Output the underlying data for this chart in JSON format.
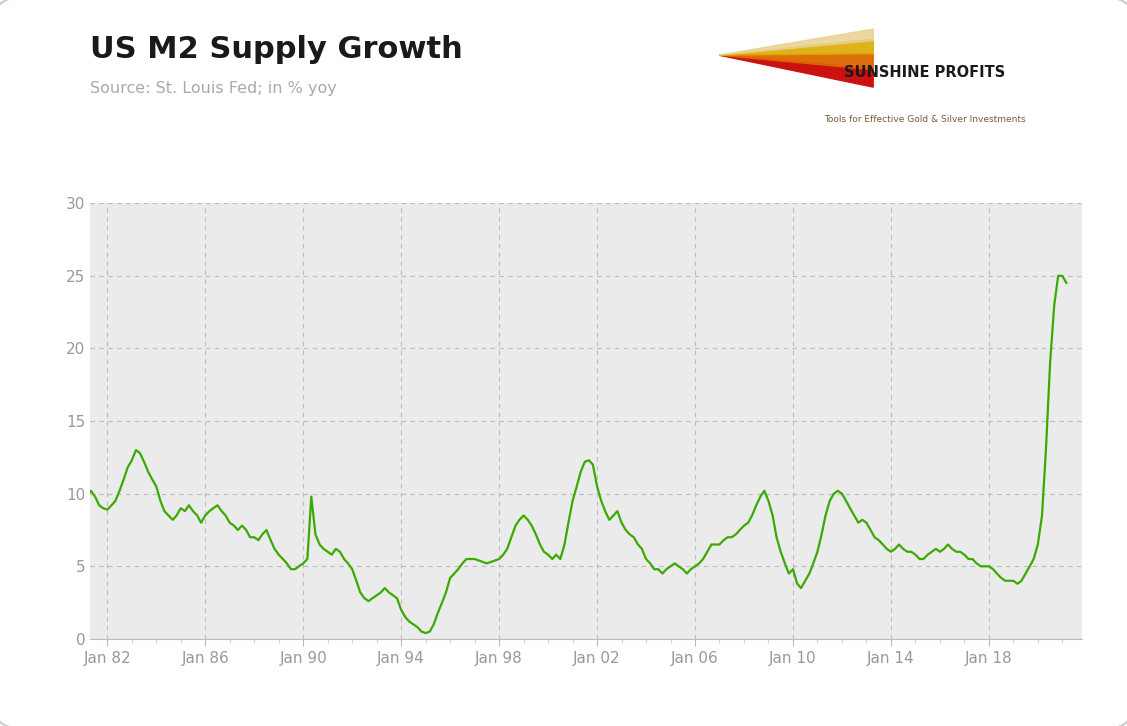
{
  "title": "US M2 Supply Growth",
  "subtitle": "Source: St. Louis Fed; in % yoy",
  "line_color": "#3aaa00",
  "plot_bg_color": "#ebebeb",
  "figure_bg_color": "#ffffff",
  "grid_color": "#bbbbbb",
  "tick_color": "#aaaaaa",
  "label_color": "#999999",
  "title_color": "#1a1a1a",
  "ylim": [
    0,
    30
  ],
  "yticks": [
    0,
    5,
    10,
    15,
    20,
    25,
    30
  ],
  "xlim_left": 1981.3,
  "xlim_right": 2021.8,
  "xtick_years": [
    1982,
    1986,
    1990,
    1994,
    1998,
    2002,
    2006,
    2010,
    2014,
    2018
  ],
  "xtick_labels": [
    "Jan 82",
    "Jan 86",
    "Jan 90",
    "Jan 94",
    "Jan 98",
    "Jan 02",
    "Jan 06",
    "Jan 10",
    "Jan 14",
    "Jan 18"
  ],
  "logo_text_main": "SUNSHINE PROFITS",
  "logo_text_sub": "Tools for Effective Gold & Silver Investments",
  "logo_ray_colors": [
    "#cc1111",
    "#dd6600",
    "#ddaa00",
    "#e8d090"
  ],
  "data": [
    [
      1981.0,
      9.5
    ],
    [
      1981.17,
      9.8
    ],
    [
      1981.33,
      10.2
    ],
    [
      1981.5,
      9.8
    ],
    [
      1981.67,
      9.2
    ],
    [
      1981.83,
      9.0
    ],
    [
      1982.0,
      8.9
    ],
    [
      1982.17,
      9.2
    ],
    [
      1982.33,
      9.5
    ],
    [
      1982.5,
      10.2
    ],
    [
      1982.67,
      11.0
    ],
    [
      1982.83,
      11.8
    ],
    [
      1983.0,
      12.3
    ],
    [
      1983.17,
      13.0
    ],
    [
      1983.33,
      12.8
    ],
    [
      1983.5,
      12.2
    ],
    [
      1983.67,
      11.5
    ],
    [
      1983.83,
      11.0
    ],
    [
      1984.0,
      10.5
    ],
    [
      1984.17,
      9.5
    ],
    [
      1984.33,
      8.8
    ],
    [
      1984.5,
      8.5
    ],
    [
      1984.67,
      8.2
    ],
    [
      1984.83,
      8.5
    ],
    [
      1985.0,
      9.0
    ],
    [
      1985.17,
      8.8
    ],
    [
      1985.33,
      9.2
    ],
    [
      1985.5,
      8.8
    ],
    [
      1985.67,
      8.5
    ],
    [
      1985.83,
      8.0
    ],
    [
      1986.0,
      8.5
    ],
    [
      1986.17,
      8.8
    ],
    [
      1986.33,
      9.0
    ],
    [
      1986.5,
      9.2
    ],
    [
      1986.67,
      8.8
    ],
    [
      1986.83,
      8.5
    ],
    [
      1987.0,
      8.0
    ],
    [
      1987.17,
      7.8
    ],
    [
      1987.33,
      7.5
    ],
    [
      1987.5,
      7.8
    ],
    [
      1987.67,
      7.5
    ],
    [
      1987.83,
      7.0
    ],
    [
      1988.0,
      7.0
    ],
    [
      1988.17,
      6.8
    ],
    [
      1988.33,
      7.2
    ],
    [
      1988.5,
      7.5
    ],
    [
      1988.67,
      6.8
    ],
    [
      1988.83,
      6.2
    ],
    [
      1989.0,
      5.8
    ],
    [
      1989.17,
      5.5
    ],
    [
      1989.33,
      5.2
    ],
    [
      1989.5,
      4.8
    ],
    [
      1989.67,
      4.8
    ],
    [
      1989.83,
      5.0
    ],
    [
      1990.0,
      5.2
    ],
    [
      1990.17,
      5.5
    ],
    [
      1990.33,
      9.8
    ],
    [
      1990.5,
      7.2
    ],
    [
      1990.67,
      6.5
    ],
    [
      1990.83,
      6.2
    ],
    [
      1991.0,
      6.0
    ],
    [
      1991.17,
      5.8
    ],
    [
      1991.33,
      6.2
    ],
    [
      1991.5,
      6.0
    ],
    [
      1991.67,
      5.5
    ],
    [
      1991.83,
      5.2
    ],
    [
      1992.0,
      4.8
    ],
    [
      1992.17,
      4.0
    ],
    [
      1992.33,
      3.2
    ],
    [
      1992.5,
      2.8
    ],
    [
      1992.67,
      2.6
    ],
    [
      1992.83,
      2.8
    ],
    [
      1993.0,
      3.0
    ],
    [
      1993.17,
      3.2
    ],
    [
      1993.33,
      3.5
    ],
    [
      1993.5,
      3.2
    ],
    [
      1993.67,
      3.0
    ],
    [
      1993.83,
      2.8
    ],
    [
      1994.0,
      2.0
    ],
    [
      1994.17,
      1.5
    ],
    [
      1994.33,
      1.2
    ],
    [
      1994.5,
      1.0
    ],
    [
      1994.67,
      0.8
    ],
    [
      1994.83,
      0.5
    ],
    [
      1995.0,
      0.4
    ],
    [
      1995.17,
      0.5
    ],
    [
      1995.33,
      1.0
    ],
    [
      1995.5,
      1.8
    ],
    [
      1995.67,
      2.5
    ],
    [
      1995.83,
      3.2
    ],
    [
      1996.0,
      4.2
    ],
    [
      1996.17,
      4.5
    ],
    [
      1996.33,
      4.8
    ],
    [
      1996.5,
      5.2
    ],
    [
      1996.67,
      5.5
    ],
    [
      1996.83,
      5.5
    ],
    [
      1997.0,
      5.5
    ],
    [
      1997.17,
      5.4
    ],
    [
      1997.33,
      5.3
    ],
    [
      1997.5,
      5.2
    ],
    [
      1997.67,
      5.3
    ],
    [
      1997.83,
      5.4
    ],
    [
      1998.0,
      5.5
    ],
    [
      1998.17,
      5.8
    ],
    [
      1998.33,
      6.2
    ],
    [
      1998.5,
      7.0
    ],
    [
      1998.67,
      7.8
    ],
    [
      1998.83,
      8.2
    ],
    [
      1999.0,
      8.5
    ],
    [
      1999.17,
      8.2
    ],
    [
      1999.33,
      7.8
    ],
    [
      1999.5,
      7.2
    ],
    [
      1999.67,
      6.5
    ],
    [
      1999.83,
      6.0
    ],
    [
      2000.0,
      5.8
    ],
    [
      2000.17,
      5.5
    ],
    [
      2000.33,
      5.8
    ],
    [
      2000.5,
      5.5
    ],
    [
      2000.67,
      6.5
    ],
    [
      2000.83,
      8.0
    ],
    [
      2001.0,
      9.5
    ],
    [
      2001.17,
      10.5
    ],
    [
      2001.33,
      11.5
    ],
    [
      2001.5,
      12.2
    ],
    [
      2001.67,
      12.3
    ],
    [
      2001.83,
      12.0
    ],
    [
      2002.0,
      10.5
    ],
    [
      2002.17,
      9.5
    ],
    [
      2002.33,
      8.8
    ],
    [
      2002.5,
      8.2
    ],
    [
      2002.67,
      8.5
    ],
    [
      2002.83,
      8.8
    ],
    [
      2003.0,
      8.0
    ],
    [
      2003.17,
      7.5
    ],
    [
      2003.33,
      7.2
    ],
    [
      2003.5,
      7.0
    ],
    [
      2003.67,
      6.5
    ],
    [
      2003.83,
      6.2
    ],
    [
      2004.0,
      5.5
    ],
    [
      2004.17,
      5.2
    ],
    [
      2004.33,
      4.8
    ],
    [
      2004.5,
      4.8
    ],
    [
      2004.67,
      4.5
    ],
    [
      2004.83,
      4.8
    ],
    [
      2005.0,
      5.0
    ],
    [
      2005.17,
      5.2
    ],
    [
      2005.33,
      5.0
    ],
    [
      2005.5,
      4.8
    ],
    [
      2005.67,
      4.5
    ],
    [
      2005.83,
      4.8
    ],
    [
      2006.0,
      5.0
    ],
    [
      2006.17,
      5.2
    ],
    [
      2006.33,
      5.5
    ],
    [
      2006.5,
      6.0
    ],
    [
      2006.67,
      6.5
    ],
    [
      2006.83,
      6.5
    ],
    [
      2007.0,
      6.5
    ],
    [
      2007.17,
      6.8
    ],
    [
      2007.33,
      7.0
    ],
    [
      2007.5,
      7.0
    ],
    [
      2007.67,
      7.2
    ],
    [
      2007.83,
      7.5
    ],
    [
      2008.0,
      7.8
    ],
    [
      2008.17,
      8.0
    ],
    [
      2008.33,
      8.5
    ],
    [
      2008.5,
      9.2
    ],
    [
      2008.67,
      9.8
    ],
    [
      2008.83,
      10.2
    ],
    [
      2009.0,
      9.5
    ],
    [
      2009.17,
      8.5
    ],
    [
      2009.33,
      7.0
    ],
    [
      2009.5,
      6.0
    ],
    [
      2009.67,
      5.2
    ],
    [
      2009.83,
      4.5
    ],
    [
      2010.0,
      4.8
    ],
    [
      2010.17,
      3.8
    ],
    [
      2010.33,
      3.5
    ],
    [
      2010.5,
      4.0
    ],
    [
      2010.67,
      4.5
    ],
    [
      2010.83,
      5.2
    ],
    [
      2011.0,
      6.0
    ],
    [
      2011.17,
      7.2
    ],
    [
      2011.33,
      8.5
    ],
    [
      2011.5,
      9.5
    ],
    [
      2011.67,
      10.0
    ],
    [
      2011.83,
      10.2
    ],
    [
      2012.0,
      10.0
    ],
    [
      2012.17,
      9.5
    ],
    [
      2012.33,
      9.0
    ],
    [
      2012.5,
      8.5
    ],
    [
      2012.67,
      8.0
    ],
    [
      2012.83,
      8.2
    ],
    [
      2013.0,
      8.0
    ],
    [
      2013.17,
      7.5
    ],
    [
      2013.33,
      7.0
    ],
    [
      2013.5,
      6.8
    ],
    [
      2013.67,
      6.5
    ],
    [
      2013.83,
      6.2
    ],
    [
      2014.0,
      6.0
    ],
    [
      2014.17,
      6.2
    ],
    [
      2014.33,
      6.5
    ],
    [
      2014.5,
      6.2
    ],
    [
      2014.67,
      6.0
    ],
    [
      2014.83,
      6.0
    ],
    [
      2015.0,
      5.8
    ],
    [
      2015.17,
      5.5
    ],
    [
      2015.33,
      5.5
    ],
    [
      2015.5,
      5.8
    ],
    [
      2015.67,
      6.0
    ],
    [
      2015.83,
      6.2
    ],
    [
      2016.0,
      6.0
    ],
    [
      2016.17,
      6.2
    ],
    [
      2016.33,
      6.5
    ],
    [
      2016.5,
      6.2
    ],
    [
      2016.67,
      6.0
    ],
    [
      2016.83,
      6.0
    ],
    [
      2017.0,
      5.8
    ],
    [
      2017.17,
      5.5
    ],
    [
      2017.33,
      5.5
    ],
    [
      2017.5,
      5.2
    ],
    [
      2017.67,
      5.0
    ],
    [
      2017.83,
      5.0
    ],
    [
      2018.0,
      5.0
    ],
    [
      2018.17,
      4.8
    ],
    [
      2018.33,
      4.5
    ],
    [
      2018.5,
      4.2
    ],
    [
      2018.67,
      4.0
    ],
    [
      2018.83,
      4.0
    ],
    [
      2019.0,
      4.0
    ],
    [
      2019.17,
      3.8
    ],
    [
      2019.33,
      4.0
    ],
    [
      2019.5,
      4.5
    ],
    [
      2019.67,
      5.0
    ],
    [
      2019.83,
      5.5
    ],
    [
      2020.0,
      6.5
    ],
    [
      2020.17,
      8.5
    ],
    [
      2020.33,
      13.0
    ],
    [
      2020.5,
      19.0
    ],
    [
      2020.67,
      23.0
    ],
    [
      2020.83,
      25.0
    ],
    [
      2021.0,
      25.0
    ],
    [
      2021.17,
      24.5
    ]
  ]
}
